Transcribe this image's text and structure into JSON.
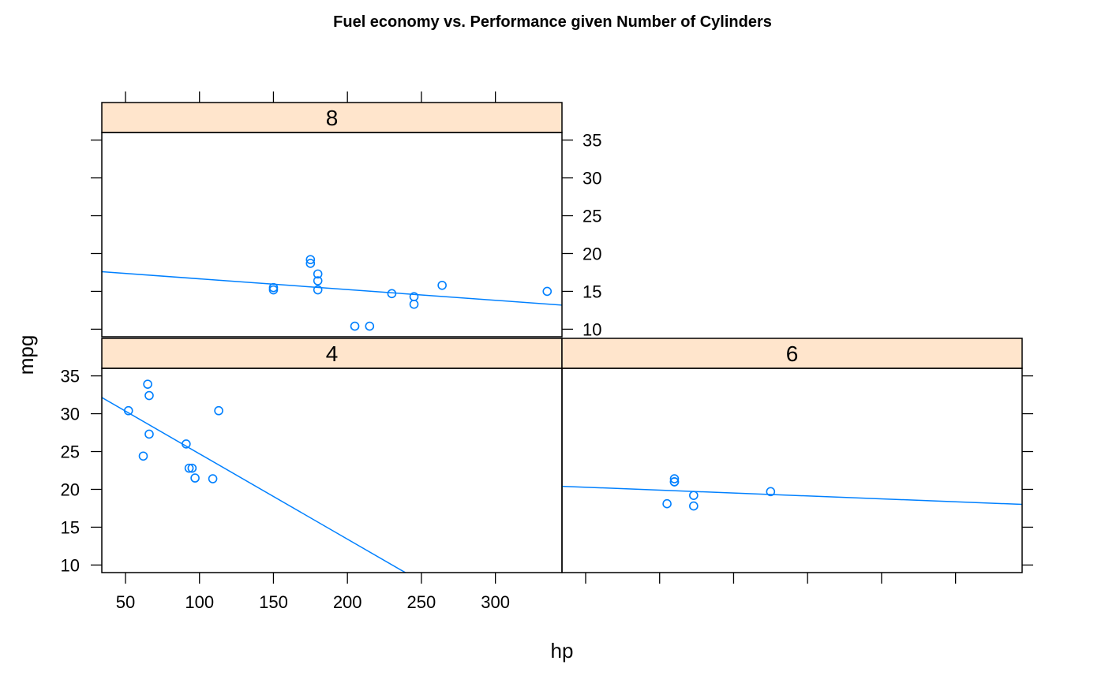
{
  "chart_data": {
    "type": "scatter",
    "title": "Fuel economy vs. Performance given Number of Cylinders",
    "xlabel": "hp",
    "ylabel": "mpg",
    "xlim": [
      34,
      345
    ],
    "ylim": [
      9,
      36
    ],
    "x_ticks": [
      50,
      100,
      150,
      200,
      250,
      300
    ],
    "y_ticks": [
      10,
      15,
      20,
      25,
      30,
      35
    ],
    "regression_lines": true,
    "colors": {
      "points": "#0080ff",
      "line": "#0080ff",
      "strip_background": "#ffe5cc",
      "frame": "#000000"
    },
    "panels": [
      {
        "name": "8",
        "fit": {
          "intercept": 18.08,
          "slope": -0.0142
        },
        "points": [
          {
            "x": 175,
            "y": 18.7
          },
          {
            "x": 245,
            "y": 14.3
          },
          {
            "x": 180,
            "y": 16.4
          },
          {
            "x": 180,
            "y": 17.3
          },
          {
            "x": 180,
            "y": 15.2
          },
          {
            "x": 205,
            "y": 10.4
          },
          {
            "x": 215,
            "y": 10.4
          },
          {
            "x": 230,
            "y": 14.7
          },
          {
            "x": 150,
            "y": 15.5
          },
          {
            "x": 150,
            "y": 15.2
          },
          {
            "x": 245,
            "y": 13.3
          },
          {
            "x": 175,
            "y": 19.2
          },
          {
            "x": 264,
            "y": 15.8
          },
          {
            "x": 335,
            "y": 15.0
          }
        ]
      },
      {
        "name": "4",
        "fit": {
          "intercept": 35.98,
          "slope": -0.1128
        },
        "points": [
          {
            "x": 93,
            "y": 22.8
          },
          {
            "x": 62,
            "y": 24.4
          },
          {
            "x": 95,
            "y": 22.8
          },
          {
            "x": 66,
            "y": 32.4
          },
          {
            "x": 52,
            "y": 30.4
          },
          {
            "x": 65,
            "y": 33.9
          },
          {
            "x": 97,
            "y": 21.5
          },
          {
            "x": 66,
            "y": 27.3
          },
          {
            "x": 91,
            "y": 26.0
          },
          {
            "x": 113,
            "y": 30.4
          },
          {
            "x": 109,
            "y": 21.4
          }
        ]
      },
      {
        "name": "6",
        "fit": {
          "intercept": 20.67,
          "slope": -0.0077
        },
        "points": [
          {
            "x": 110,
            "y": 21.0
          },
          {
            "x": 110,
            "y": 21.0
          },
          {
            "x": 110,
            "y": 21.4
          },
          {
            "x": 105,
            "y": 18.1
          },
          {
            "x": 123,
            "y": 19.2
          },
          {
            "x": 123,
            "y": 17.8
          },
          {
            "x": 175,
            "y": 19.7
          }
        ]
      }
    ]
  }
}
